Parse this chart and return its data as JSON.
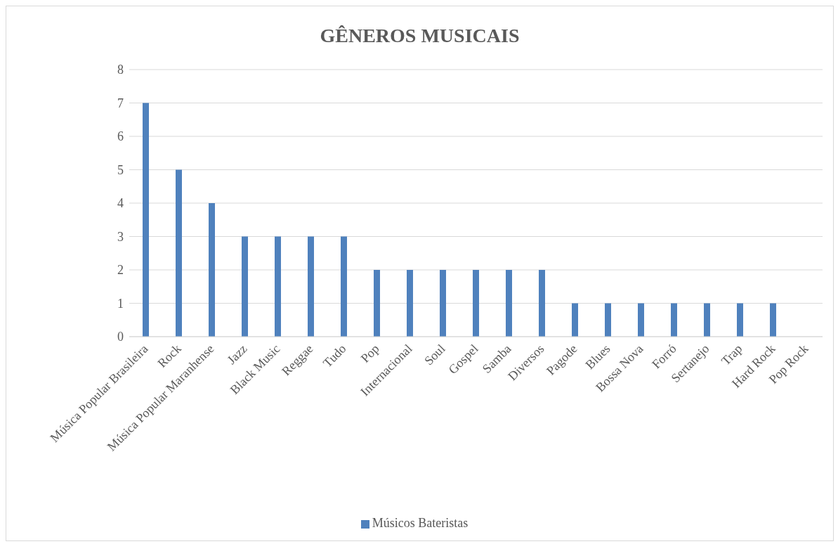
{
  "chart_data": {
    "type": "bar",
    "title": "GÊNEROS MUSICAIS",
    "categories": [
      "Música Popular Brasileira",
      "Rock",
      "Música Popular Maranhense",
      "Jazz",
      "Black Music",
      "Reggae",
      "Tudo",
      "Pop",
      "Internacional",
      "Soul",
      "Gospel",
      "Samba",
      "Diversos",
      "Pagode",
      "Blues",
      "Bossa Nova",
      "Forró",
      "Sertanejo",
      "Trap",
      "Hard Rock",
      "Pop Rock"
    ],
    "series": [
      {
        "name": "Músicos Bateristas",
        "color": "#4f81bd",
        "values": [
          7,
          5,
          4,
          3,
          3,
          3,
          3,
          2,
          2,
          2,
          2,
          2,
          2,
          1,
          1,
          1,
          1,
          1,
          1,
          1,
          0
        ]
      }
    ],
    "ylim": [
      0,
      8
    ],
    "yticks": [
      0,
      1,
      2,
      3,
      4,
      5,
      6,
      7,
      8
    ],
    "grid": "y",
    "legend": "bottom"
  }
}
